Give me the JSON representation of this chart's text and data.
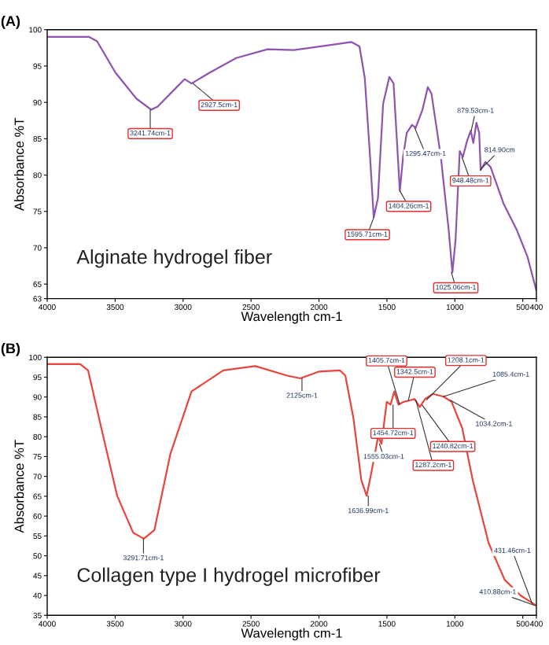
{
  "chart_data": [
    {
      "type": "line",
      "title": "(A)",
      "xlabel": "Wavelength cm-1",
      "ylabel": "Absorbance %T",
      "color": "#8e54b0",
      "x": [
        4000,
        3691,
        3633,
        3498,
        3343,
        3235,
        3189,
        3073,
        2988,
        2938,
        2803,
        2609,
        2378,
        2184,
        1953,
        1760,
        1702,
        1663,
        1624,
        1597,
        1566,
        1528,
        1482,
        1451,
        1424,
        1405,
        1381,
        1354,
        1315,
        1288,
        1238,
        1199,
        1172,
        1103,
        1045,
        1018,
        995,
        964,
        941,
        910,
        883,
        864,
        841,
        821,
        810,
        775,
        737,
        640,
        543,
        466,
        400
      ],
      "values": [
        99.0,
        99.0,
        98.4,
        94.1,
        90.5,
        89.0,
        89.4,
        91.6,
        93.2,
        92.6,
        94.1,
        96.1,
        97.3,
        97.2,
        97.8,
        98.3,
        97.7,
        93.4,
        82.5,
        74.2,
        76.8,
        89.8,
        93.5,
        92.6,
        84.0,
        77.8,
        82.5,
        85.8,
        86.9,
        86.5,
        89.0,
        92.1,
        91.2,
        82.5,
        72.4,
        66.6,
        71.0,
        83.3,
        82.5,
        84.7,
        86.1,
        84.4,
        87.2,
        85.8,
        80.7,
        81.8,
        81.1,
        76.0,
        72.4,
        68.8,
        64.1
      ],
      "xlim": [
        4000,
        400
      ],
      "xticks": [
        4000,
        3500,
        3000,
        2500,
        2000,
        1500,
        1000,
        500,
        400
      ],
      "ylim": [
        63,
        100
      ],
      "yticks": [
        63,
        65,
        70,
        75,
        80,
        85,
        90,
        95,
        100
      ],
      "annotations": [
        "Alginate hydrogel fiber",
        {
          "text": "3241.74cm-1",
          "x": 3241.74,
          "y": 89.0
        },
        {
          "text": "2927.5cm-1",
          "x": 2927.5,
          "y": 92.6
        },
        {
          "text": "1595.71cm-1",
          "x": 1595.71,
          "y": 74.2
        },
        {
          "text": "1404.26cm-1",
          "x": 1404.26,
          "y": 77.8
        },
        {
          "text": "1295.47cm-1",
          "x": 1295.47,
          "y": 86.5
        },
        {
          "text": "1025.06cm-1",
          "x": 1025.06,
          "y": 66.6
        },
        {
          "text": "948.48cm-1",
          "x": 948.48,
          "y": 82.5
        },
        {
          "text": "879.53cm-1",
          "x": 879.53,
          "y": 86.1
        },
        {
          "text": "814.90cm",
          "x": 814.9,
          "y": 80.7
        }
      ]
    },
    {
      "type": "line",
      "title": "(B)",
      "xlabel": "Wavelength cm-1",
      "ylabel": "Absorbance %T",
      "color": "#e8453c",
      "x": [
        4000,
        3758,
        3699,
        3602,
        3485,
        3367,
        3289,
        3211,
        3094,
        2938,
        2704,
        2469,
        2235,
        2138,
        2001,
        1845,
        1806,
        1747,
        1688,
        1649,
        1610,
        1564,
        1540,
        1501,
        1473,
        1446,
        1415,
        1376,
        1337,
        1297,
        1258,
        1219,
        1161,
        1083,
        1024,
        946,
        868,
        751,
        634,
        517,
        438,
        400
      ],
      "values": [
        98.3,
        98.3,
        96.7,
        82.2,
        65.1,
        55.8,
        54.3,
        56.5,
        75.6,
        91.4,
        96.7,
        97.8,
        95.4,
        94.7,
        96.4,
        96.7,
        95.4,
        84.8,
        69.0,
        65.1,
        71.7,
        80.2,
        78.2,
        88.8,
        88.1,
        91.4,
        88.1,
        88.8,
        89.1,
        89.5,
        87.5,
        89.5,
        90.8,
        90.1,
        88.8,
        82.2,
        69.0,
        53.2,
        44.0,
        40.0,
        38.3,
        37.4
      ],
      "xlim": [
        4000,
        400
      ],
      "xticks": [
        4000,
        3500,
        3000,
        2500,
        2000,
        1500,
        1000,
        500,
        400
      ],
      "ylim": [
        35,
        100
      ],
      "yticks": [
        35,
        40,
        45,
        50,
        55,
        60,
        65,
        70,
        75,
        80,
        85,
        90,
        95,
        100
      ],
      "annotations": [
        "Collagen type I hydrogel microfiber",
        {
          "text": "3291.71cm-1",
          "x": 3291.71,
          "y": 54.3
        },
        {
          "text": "2125cm-1",
          "x": 2125,
          "y": 94.7
        },
        {
          "text": "1636.99cm-1",
          "x": 1636.99,
          "y": 65.1
        },
        {
          "text": "1555.03cm-1",
          "x": 1555.03,
          "y": 78.2
        },
        {
          "text": "1454.72cm-1",
          "x": 1454.72,
          "y": 88.0
        },
        {
          "text": "1405.7cm-1",
          "x": 1405.7,
          "y": 88.1
        },
        {
          "text": "1342.5cm-1",
          "x": 1342.5,
          "y": 89.1
        },
        {
          "text": "1287.2cm-1",
          "x": 1287.2,
          "y": 89.3
        },
        {
          "text": "1240.82cm-1",
          "x": 1240.82,
          "y": 88.0
        },
        {
          "text": "1208.1cm-1",
          "x": 1208.1,
          "y": 89.3
        },
        {
          "text": "1085.4cm-1",
          "x": 1085.4,
          "y": 90.1
        },
        {
          "text": "1034.2cm-1",
          "x": 1034.2,
          "y": 89.2
        },
        {
          "text": "431.46cm-1",
          "x": 431.46,
          "y": 38.0
        },
        {
          "text": "410.88cm-1",
          "x": 410.88,
          "y": 37.5
        }
      ]
    }
  ]
}
